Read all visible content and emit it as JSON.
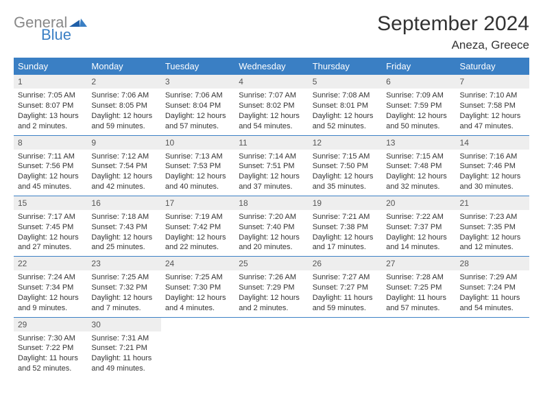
{
  "logo": {
    "word1": "General",
    "word2": "Blue"
  },
  "title": "September 2024",
  "location": "Aneza, Greece",
  "colors": {
    "header_bg": "#3a7fc4",
    "header_fg": "#ffffff",
    "daynum_bg": "#eeeeee",
    "border": "#3a7fc4",
    "logo_gray": "#888888",
    "logo_blue": "#3a7fc4"
  },
  "weekdays": [
    "Sunday",
    "Monday",
    "Tuesday",
    "Wednesday",
    "Thursday",
    "Friday",
    "Saturday"
  ],
  "days": [
    {
      "n": "1",
      "sunrise": "Sunrise: 7:05 AM",
      "sunset": "Sunset: 8:07 PM",
      "daylight": "Daylight: 13 hours and 2 minutes."
    },
    {
      "n": "2",
      "sunrise": "Sunrise: 7:06 AM",
      "sunset": "Sunset: 8:05 PM",
      "daylight": "Daylight: 12 hours and 59 minutes."
    },
    {
      "n": "3",
      "sunrise": "Sunrise: 7:06 AM",
      "sunset": "Sunset: 8:04 PM",
      "daylight": "Daylight: 12 hours and 57 minutes."
    },
    {
      "n": "4",
      "sunrise": "Sunrise: 7:07 AM",
      "sunset": "Sunset: 8:02 PM",
      "daylight": "Daylight: 12 hours and 54 minutes."
    },
    {
      "n": "5",
      "sunrise": "Sunrise: 7:08 AM",
      "sunset": "Sunset: 8:01 PM",
      "daylight": "Daylight: 12 hours and 52 minutes."
    },
    {
      "n": "6",
      "sunrise": "Sunrise: 7:09 AM",
      "sunset": "Sunset: 7:59 PM",
      "daylight": "Daylight: 12 hours and 50 minutes."
    },
    {
      "n": "7",
      "sunrise": "Sunrise: 7:10 AM",
      "sunset": "Sunset: 7:58 PM",
      "daylight": "Daylight: 12 hours and 47 minutes."
    },
    {
      "n": "8",
      "sunrise": "Sunrise: 7:11 AM",
      "sunset": "Sunset: 7:56 PM",
      "daylight": "Daylight: 12 hours and 45 minutes."
    },
    {
      "n": "9",
      "sunrise": "Sunrise: 7:12 AM",
      "sunset": "Sunset: 7:54 PM",
      "daylight": "Daylight: 12 hours and 42 minutes."
    },
    {
      "n": "10",
      "sunrise": "Sunrise: 7:13 AM",
      "sunset": "Sunset: 7:53 PM",
      "daylight": "Daylight: 12 hours and 40 minutes."
    },
    {
      "n": "11",
      "sunrise": "Sunrise: 7:14 AM",
      "sunset": "Sunset: 7:51 PM",
      "daylight": "Daylight: 12 hours and 37 minutes."
    },
    {
      "n": "12",
      "sunrise": "Sunrise: 7:15 AM",
      "sunset": "Sunset: 7:50 PM",
      "daylight": "Daylight: 12 hours and 35 minutes."
    },
    {
      "n": "13",
      "sunrise": "Sunrise: 7:15 AM",
      "sunset": "Sunset: 7:48 PM",
      "daylight": "Daylight: 12 hours and 32 minutes."
    },
    {
      "n": "14",
      "sunrise": "Sunrise: 7:16 AM",
      "sunset": "Sunset: 7:46 PM",
      "daylight": "Daylight: 12 hours and 30 minutes."
    },
    {
      "n": "15",
      "sunrise": "Sunrise: 7:17 AM",
      "sunset": "Sunset: 7:45 PM",
      "daylight": "Daylight: 12 hours and 27 minutes."
    },
    {
      "n": "16",
      "sunrise": "Sunrise: 7:18 AM",
      "sunset": "Sunset: 7:43 PM",
      "daylight": "Daylight: 12 hours and 25 minutes."
    },
    {
      "n": "17",
      "sunrise": "Sunrise: 7:19 AM",
      "sunset": "Sunset: 7:42 PM",
      "daylight": "Daylight: 12 hours and 22 minutes."
    },
    {
      "n": "18",
      "sunrise": "Sunrise: 7:20 AM",
      "sunset": "Sunset: 7:40 PM",
      "daylight": "Daylight: 12 hours and 20 minutes."
    },
    {
      "n": "19",
      "sunrise": "Sunrise: 7:21 AM",
      "sunset": "Sunset: 7:38 PM",
      "daylight": "Daylight: 12 hours and 17 minutes."
    },
    {
      "n": "20",
      "sunrise": "Sunrise: 7:22 AM",
      "sunset": "Sunset: 7:37 PM",
      "daylight": "Daylight: 12 hours and 14 minutes."
    },
    {
      "n": "21",
      "sunrise": "Sunrise: 7:23 AM",
      "sunset": "Sunset: 7:35 PM",
      "daylight": "Daylight: 12 hours and 12 minutes."
    },
    {
      "n": "22",
      "sunrise": "Sunrise: 7:24 AM",
      "sunset": "Sunset: 7:34 PM",
      "daylight": "Daylight: 12 hours and 9 minutes."
    },
    {
      "n": "23",
      "sunrise": "Sunrise: 7:25 AM",
      "sunset": "Sunset: 7:32 PM",
      "daylight": "Daylight: 12 hours and 7 minutes."
    },
    {
      "n": "24",
      "sunrise": "Sunrise: 7:25 AM",
      "sunset": "Sunset: 7:30 PM",
      "daylight": "Daylight: 12 hours and 4 minutes."
    },
    {
      "n": "25",
      "sunrise": "Sunrise: 7:26 AM",
      "sunset": "Sunset: 7:29 PM",
      "daylight": "Daylight: 12 hours and 2 minutes."
    },
    {
      "n": "26",
      "sunrise": "Sunrise: 7:27 AM",
      "sunset": "Sunset: 7:27 PM",
      "daylight": "Daylight: 11 hours and 59 minutes."
    },
    {
      "n": "27",
      "sunrise": "Sunrise: 7:28 AM",
      "sunset": "Sunset: 7:25 PM",
      "daylight": "Daylight: 11 hours and 57 minutes."
    },
    {
      "n": "28",
      "sunrise": "Sunrise: 7:29 AM",
      "sunset": "Sunset: 7:24 PM",
      "daylight": "Daylight: 11 hours and 54 minutes."
    },
    {
      "n": "29",
      "sunrise": "Sunrise: 7:30 AM",
      "sunset": "Sunset: 7:22 PM",
      "daylight": "Daylight: 11 hours and 52 minutes."
    },
    {
      "n": "30",
      "sunrise": "Sunrise: 7:31 AM",
      "sunset": "Sunset: 7:21 PM",
      "daylight": "Daylight: 11 hours and 49 minutes."
    }
  ]
}
